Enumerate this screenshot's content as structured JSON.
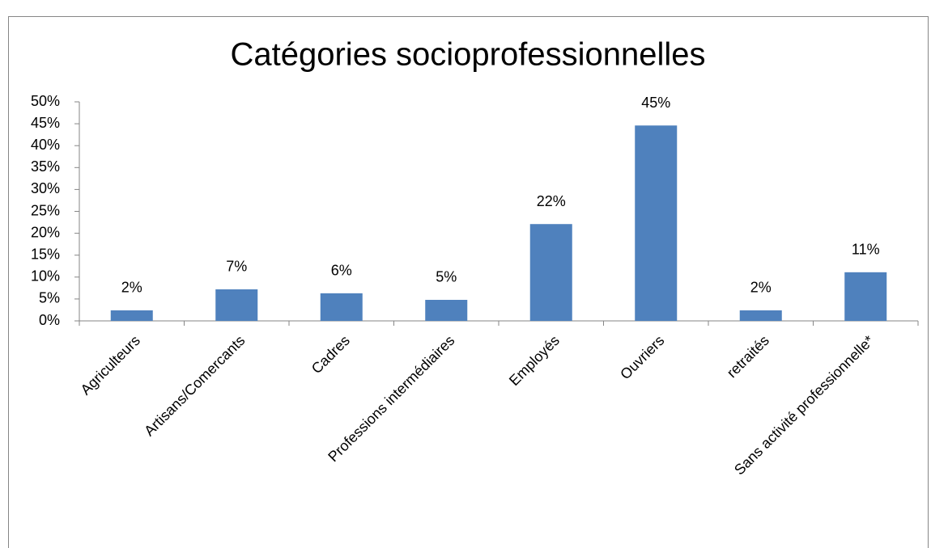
{
  "chart_data": {
    "type": "bar",
    "title": "Catégories socioprofessionnelles",
    "categories": [
      "Agriculteurs",
      "Artisans/Comercants",
      "Cadres",
      "Professions intermédiaires",
      "Employés",
      "Ouvriers",
      "retraités",
      "Sans activité professionnelle*"
    ],
    "values": [
      2.4,
      7.2,
      6.3,
      4.8,
      22.1,
      44.6,
      2.4,
      11.1
    ],
    "value_labels": [
      "2%",
      "7%",
      "6%",
      "5%",
      "22%",
      "45%",
      "2%",
      "11%"
    ],
    "color": "#4f81bd",
    "ylim": [
      0,
      50
    ],
    "yticks": [
      {
        "value": 0,
        "label": "0%"
      },
      {
        "value": 5,
        "label": "5%"
      },
      {
        "value": 10,
        "label": "10%"
      },
      {
        "value": 15,
        "label": "15%"
      },
      {
        "value": 20,
        "label": "20%"
      },
      {
        "value": 25,
        "label": "25%"
      },
      {
        "value": 30,
        "label": "30%"
      },
      {
        "value": 35,
        "label": "35%"
      },
      {
        "value": 40,
        "label": "40%"
      },
      {
        "value": 45,
        "label": "45%"
      },
      {
        "value": 50,
        "label": "50%"
      }
    ],
    "grid": false
  }
}
